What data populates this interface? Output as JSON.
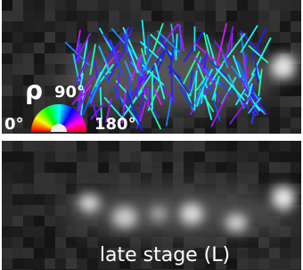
{
  "top_panel": {
    "symbol": "ρ",
    "angle_90": "90°",
    "angle_0": "0°",
    "angle_180": "180°"
  },
  "bottom_panel": {
    "label": "late stage (L)"
  }
}
